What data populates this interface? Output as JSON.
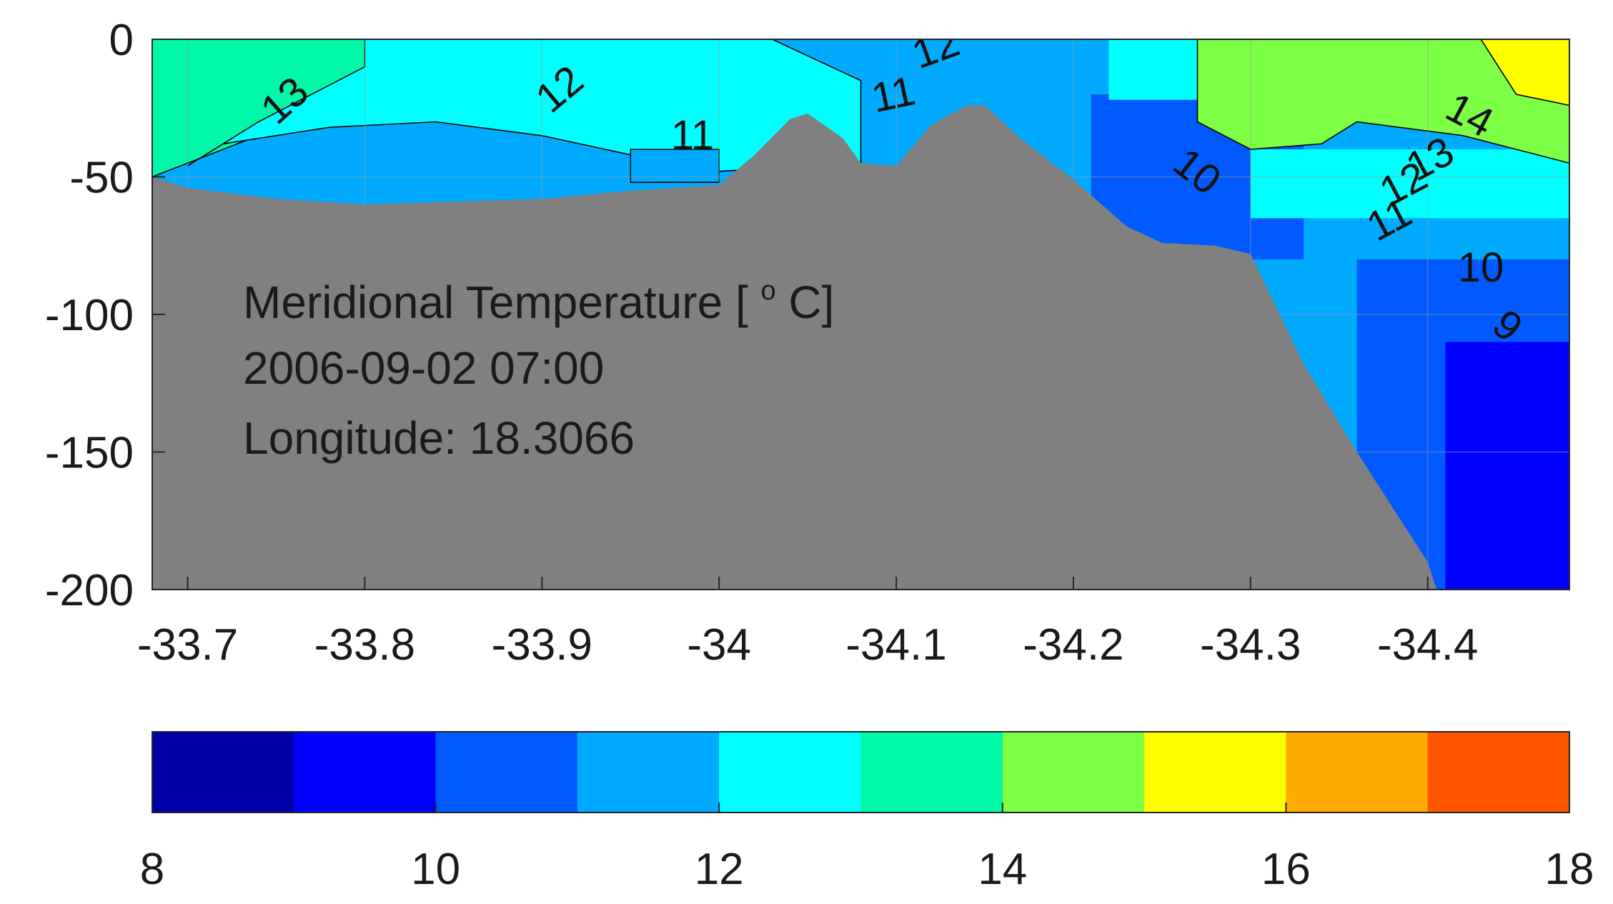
{
  "chart_data": [
    {
      "type": "contour",
      "xlim": [
        -33.68,
        -34.48
      ],
      "ylim": [
        -200,
        0
      ],
      "x_ticks": [
        -33.7,
        -33.8,
        -33.9,
        -34,
        -34.1,
        -34.2,
        -34.3,
        -34.4
      ],
      "x_tick_labels": [
        "-33.7",
        "-33.8",
        "-33.9",
        "-34",
        "-34.1",
        "-34.2",
        "-34.3",
        "-34.4"
      ],
      "y_ticks": [
        0,
        -50,
        -100,
        -150,
        -200
      ],
      "y_tick_labels": [
        "0",
        "-50",
        "-100",
        "-150",
        "-200"
      ],
      "grid": true,
      "annotation_lines": [
        "Meridional Temperature [ ",
        "o",
        " C]",
        "2006-09-02 07:00",
        "Longitude: 18.3066"
      ],
      "contour_labels": [
        {
          "text": "13",
          "x": -33.76,
          "y": -26,
          "angle": -42
        },
        {
          "text": "12",
          "x": -33.915,
          "y": -22,
          "angle": -40
        },
        {
          "text": "11",
          "x": -33.985,
          "y": -40,
          "angle": 0
        },
        {
          "text": "11",
          "x": -34.1,
          "y": -25,
          "angle": -12
        },
        {
          "text": "12",
          "x": -34.125,
          "y": -8,
          "angle": -20
        },
        {
          "text": "10",
          "x": -34.265,
          "y": -52,
          "angle": 38
        },
        {
          "text": "14",
          "x": -34.42,
          "y": -32,
          "angle": 28
        },
        {
          "text": "13",
          "x": -34.405,
          "y": -48,
          "angle": -28
        },
        {
          "text": "12",
          "x": -34.39,
          "y": -57,
          "angle": -28
        },
        {
          "text": "11",
          "x": -34.382,
          "y": -70,
          "angle": -28
        },
        {
          "text": "10",
          "x": -34.43,
          "y": -88,
          "angle": 0
        },
        {
          "text": "9",
          "x": -34.44,
          "y": -108,
          "angle": 40
        }
      ],
      "bathymetry": {
        "x": [
          -33.68,
          -33.7,
          -33.75,
          -33.8,
          -33.85,
          -33.9,
          -33.95,
          -34.0,
          -34.02,
          -34.04,
          -34.05,
          -34.07,
          -34.08,
          -34.1,
          -34.12,
          -34.14,
          -34.15,
          -34.17,
          -34.2,
          -34.23,
          -34.25,
          -34.28,
          -34.3,
          -34.33,
          -34.36,
          -34.4,
          -34.405,
          -34.48
        ],
        "y": [
          -50,
          -54,
          -58,
          -60,
          -59,
          -58,
          -55,
          -53,
          -42,
          -29,
          -27,
          -36,
          -45,
          -46,
          -31,
          -24,
          -24,
          -36,
          -51,
          -68,
          -74,
          -75,
          -78,
          -118,
          -150,
          -190,
          -200,
          -200
        ]
      },
      "regions": [
        {
          "value": 13,
          "x": [
            -33.68,
            -33.68,
            -33.8,
            -33.8,
            -33.74,
            -33.68
          ],
          "y": [
            -50,
            0,
            0,
            -10,
            -35,
            -50
          ]
        },
        {
          "value": 12,
          "x": [
            -33.8,
            -34.03,
            -34.08,
            -34.08,
            -34.0,
            -33.95,
            -33.9,
            -33.84,
            -33.78,
            -33.72,
            -33.7,
            -33.74,
            -33.8
          ],
          "y": [
            0,
            0,
            -15,
            -45,
            -48,
            -42,
            -35,
            -30,
            -32,
            -38,
            -46,
            -30,
            -10
          ]
        },
        {
          "value": 14,
          "x": [
            -34.27,
            -34.48,
            -34.48,
            -34.45,
            -34.42,
            -34.36,
            -34.34,
            -34.3,
            -34.27,
            -34.27
          ],
          "y": [
            0,
            0,
            -45,
            -40,
            -35,
            -30,
            -38,
            -40,
            -30,
            0
          ]
        },
        {
          "value": 15,
          "x": [
            -34.43,
            -34.48,
            -34.48,
            -34.45,
            -34.43
          ],
          "y": [
            0,
            0,
            -24,
            -20,
            0
          ]
        },
        {
          "value": 11,
          "x": [
            -33.95,
            -34.0,
            -34.0,
            -33.95,
            -33.95
          ],
          "y": [
            -40,
            -40,
            -52,
            -52,
            -40
          ]
        }
      ]
    },
    {
      "type": "colorbar",
      "levels": [
        8,
        9,
        10,
        11,
        12,
        13,
        14,
        15,
        16,
        17,
        18
      ],
      "colors": [
        "#0000a8",
        "#0000ff",
        "#005aff",
        "#00aaff",
        "#00ffff",
        "#00f8a8",
        "#7cff44",
        "#ffff00",
        "#ffaa00",
        "#ff5500"
      ],
      "tick_values": [
        8,
        10,
        12,
        14,
        16,
        18
      ],
      "tick_labels": [
        "8",
        "10",
        "12",
        "14",
        "16",
        "18"
      ]
    }
  ],
  "colors": {
    "land": "#808080",
    "contour_line": "#000000",
    "grid": "#9a9a9a"
  }
}
